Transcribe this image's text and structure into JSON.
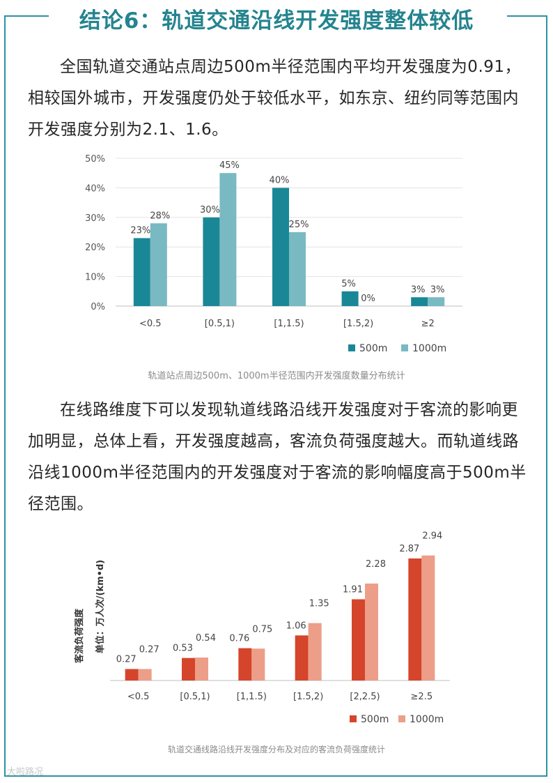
{
  "title": "结论6：轨道交通沿线开发强度整体较低",
  "para1": "全国轨道交通站点周边500m半径范围内平均开发强度为0.91，相较国外城市，开发强度仍处于较低水平，如东京、纽约同等范围内开发强度分别为2.1、1.6。",
  "para2": "在线路维度下可以发现轨道线路沿线开发强度对于客流的影响更加明显，总体上看，开发强度越高，客流负荷强度越大。而轨道线路沿线1000m半径范围内的开发强度对于客流的影响幅度高于500m半径范围。",
  "watermark": "大啦路况",
  "colors": {
    "accent": "#2a93a2",
    "chart1_500m": "#1a8797",
    "chart1_1000m": "#79b9c2",
    "chart2_500m": "#d5452b",
    "chart2_1000m": "#ec9e89"
  },
  "chart_data": [
    {
      "type": "bar",
      "caption": "轨道站点周边500m、1000m半径范围内开发强度数量分布统计",
      "categories": [
        "<0.5",
        "[0.5,1)",
        "[1,1.5)",
        "[1.5,2)",
        "≥2"
      ],
      "series": [
        {
          "name": "500m",
          "values": [
            23,
            30,
            40,
            5,
            3
          ],
          "labels": [
            "23%",
            "30%",
            "40%",
            "5%",
            "3%"
          ]
        },
        {
          "name": "1000m",
          "values": [
            28,
            45,
            25,
            0,
            3
          ],
          "labels": [
            "28%",
            "45%",
            "25%",
            "0%",
            "3%"
          ]
        }
      ],
      "yticks": [
        "0%",
        "10%",
        "20%",
        "30%",
        "40%",
        "50%"
      ],
      "ylim": [
        0,
        50
      ],
      "grid": true,
      "legend": "bottom-right"
    },
    {
      "type": "bar",
      "caption": "轨道交通线路沿线开发强度分布及对应的客流负荷强度统计",
      "ylabel": "客流负荷强度",
      "yunit": "单位：万人次/(km•d)",
      "categories": [
        "<0.5",
        "[0.5,1)",
        "[1,1.5)",
        "[1.5,2)",
        "[2,2.5)",
        "≥2.5"
      ],
      "series": [
        {
          "name": "500m",
          "values": [
            0.27,
            0.53,
            0.76,
            1.06,
            1.91,
            2.87
          ],
          "labels": [
            "0.27",
            "0.53",
            "0.76",
            "1.06",
            "1.91",
            "2.87"
          ]
        },
        {
          "name": "1000m",
          "values": [
            0.27,
            0.54,
            0.75,
            1.35,
            2.28,
            2.94
          ],
          "labels": [
            "0.27",
            "0.54",
            "0.75",
            "1.35",
            "2.28",
            "2.94"
          ]
        }
      ],
      "ylim": [
        0,
        3
      ],
      "grid": false,
      "legend": "bottom-right"
    }
  ]
}
